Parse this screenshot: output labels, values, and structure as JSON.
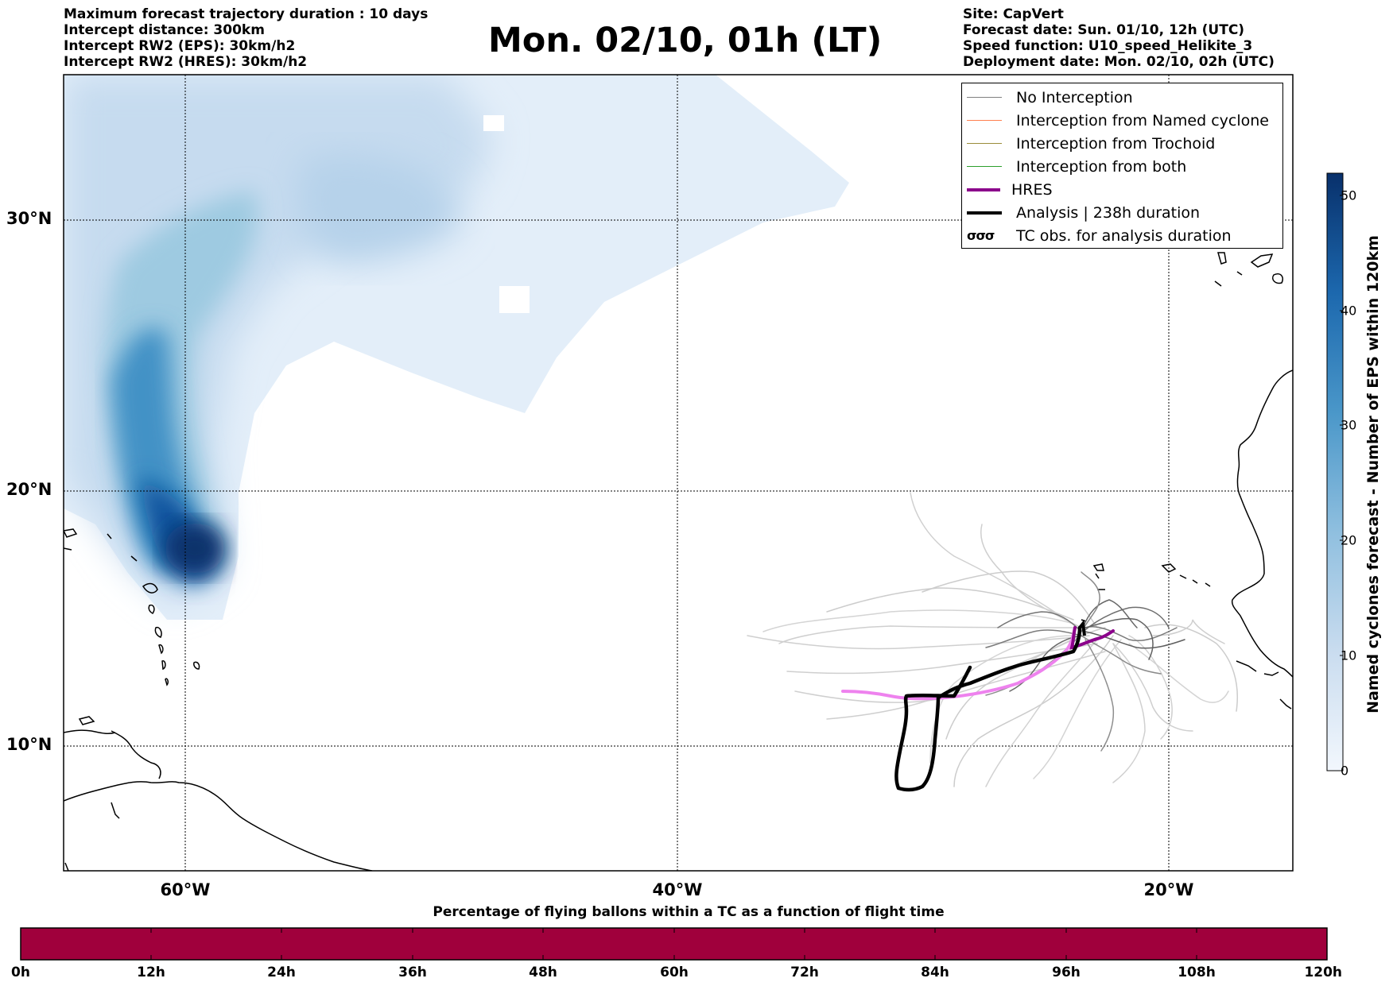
{
  "header_left": [
    "Maximum forecast trajectory duration : 10 days",
    "Intercept distance: 300km",
    "Intercept RW2 (EPS):  30km/h2",
    "Intercept RW2 (HRES): 30km/h2"
  ],
  "title": "Mon. 02/10, 01h (LT)",
  "header_right": [
    "Site: CapVert",
    "Forecast date: Sun. 01/10, 12h (UTC)",
    "Speed function: U10_speed_Helikite_3",
    "Deployment date: Mon. 02/10, 02h (UTC)"
  ],
  "latitude_labels": [
    "30°N",
    "20°N",
    "10°N"
  ],
  "longitude_labels": [
    "60°W",
    "40°W",
    "20°W"
  ],
  "legend": [
    {
      "label": "No Interception",
      "color": "#808080",
      "style": "thin"
    },
    {
      "label": "Interception from Named cyclone",
      "color": "#ff7f50",
      "style": "thin"
    },
    {
      "label": "Interception from Trochoid",
      "color": "#9a8c3a",
      "style": "thin"
    },
    {
      "label": "Interception from both",
      "color": "#2ca02c",
      "style": "thin"
    },
    {
      "label": "HRES",
      "color": "#8b008b",
      "style": "thick"
    },
    {
      "label": "Analysis | 238h duration",
      "color": "#000000",
      "style": "thick"
    },
    {
      "label": "TC obs. for analysis duration",
      "color": "#000000",
      "style": "tc",
      "symbol": "σσσ"
    }
  ],
  "colorbar": {
    "title": "Named cyclones forecast - Number of EPS within 120km",
    "ticks": [
      "50",
      "40",
      "30",
      "20",
      "10",
      "0"
    ],
    "min": 0,
    "max": 52,
    "colors": [
      "#e8f1fa",
      "#08306b"
    ]
  },
  "bottom_bar": {
    "title": "Percentage of flying ballons within a TC as a function of flight time",
    "time_labels": [
      "0h",
      "12h",
      "24h",
      "36h",
      "48h",
      "60h",
      "72h",
      "84h",
      "96h",
      "108h",
      "120h"
    ],
    "color": "#a0003c"
  },
  "map_extent": {
    "lon_min": -65,
    "lon_max": -15,
    "lat_min": 5.5,
    "lat_max": 35
  }
}
